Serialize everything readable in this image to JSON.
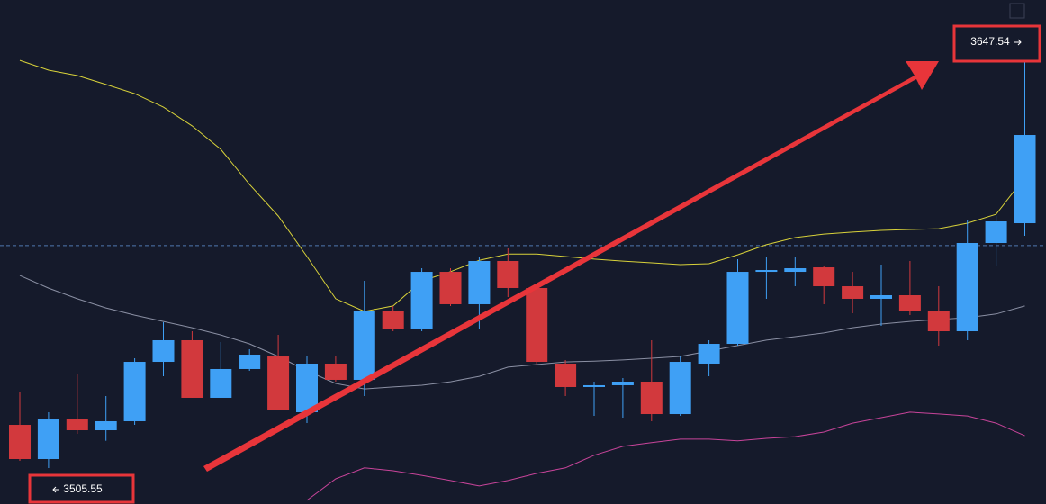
{
  "chart_data": {
    "type": "candlestick",
    "ylim": [
      3493.01,
      3668.54
    ],
    "up_color": "#3fa0f5",
    "down_color": "#d2393d",
    "candles": [
      {
        "open": 3520.59,
        "high": 3532.19,
        "low": 3508.05,
        "close": 3508.68
      },
      {
        "open": 3508.68,
        "high": 3524.98,
        "low": 3505.55,
        "close": 3522.47
      },
      {
        "open": 3522.47,
        "high": 3538.46,
        "low": 3517.46,
        "close": 3518.71
      },
      {
        "open": 3518.71,
        "high": 3530.62,
        "low": 3515.05,
        "close": 3521.85
      },
      {
        "open": 3521.85,
        "high": 3543.79,
        "low": 3520.59,
        "close": 3542.53
      },
      {
        "open": 3542.53,
        "high": 3556.33,
        "low": 3537.52,
        "close": 3550.06
      },
      {
        "open": 3550.06,
        "high": 3553.19,
        "low": 3530.0,
        "close": 3530.0
      },
      {
        "open": 3530.0,
        "high": 3549.43,
        "low": 3530.0,
        "close": 3540.03
      },
      {
        "open": 3540.03,
        "high": 3546.92,
        "low": 3539.4,
        "close": 3545.04
      },
      {
        "open": 3544.41,
        "high": 3551.93,
        "low": 3525.61,
        "close": 3525.61
      },
      {
        "open": 3524.98,
        "high": 3544.41,
        "low": 3521.22,
        "close": 3541.91
      },
      {
        "open": 3541.91,
        "high": 3544.41,
        "low": 3535.64,
        "close": 3536.27
      },
      {
        "open": 3536.27,
        "high": 3570.74,
        "low": 3530.62,
        "close": 3560.09
      },
      {
        "open": 3560.09,
        "high": 3561.97,
        "low": 3553.19,
        "close": 3553.82
      },
      {
        "open": 3553.82,
        "high": 3575.13,
        "low": 3553.19,
        "close": 3573.87
      },
      {
        "open": 3573.87,
        "high": 3575.13,
        "low": 3561.97,
        "close": 3562.6
      },
      {
        "open": 3562.6,
        "high": 3578.89,
        "low": 3553.82,
        "close": 3577.64
      },
      {
        "open": 3577.64,
        "high": 3582.03,
        "low": 3565.1,
        "close": 3568.24
      },
      {
        "open": 3568.24,
        "high": 3569.49,
        "low": 3541.28,
        "close": 3542.53
      },
      {
        "open": 3541.91,
        "high": 3543.16,
        "low": 3530.62,
        "close": 3533.76
      },
      {
        "open": 3533.76,
        "high": 3535.64,
        "low": 3523.73,
        "close": 3534.39
      },
      {
        "open": 3534.39,
        "high": 3536.89,
        "low": 3523.1,
        "close": 3535.64
      },
      {
        "open": 3535.64,
        "high": 3550.06,
        "low": 3521.85,
        "close": 3524.35
      },
      {
        "open": 3524.35,
        "high": 3544.41,
        "low": 3523.73,
        "close": 3542.53
      },
      {
        "open": 3541.91,
        "high": 3550.06,
        "low": 3537.52,
        "close": 3548.8
      },
      {
        "open": 3548.8,
        "high": 3578.26,
        "low": 3548.17,
        "close": 3573.87
      },
      {
        "open": 3573.87,
        "high": 3578.89,
        "low": 3564.48,
        "close": 3574.5
      },
      {
        "open": 3573.87,
        "high": 3578.89,
        "low": 3568.86,
        "close": 3575.13
      },
      {
        "open": 3575.44,
        "high": 3575.75,
        "low": 3562.6,
        "close": 3568.86
      },
      {
        "open": 3568.86,
        "high": 3573.87,
        "low": 3559.46,
        "close": 3564.48
      },
      {
        "open": 3564.48,
        "high": 3576.38,
        "low": 3555.07,
        "close": 3565.73
      },
      {
        "open": 3565.73,
        "high": 3577.64,
        "low": 3558.83,
        "close": 3560.09
      },
      {
        "open": 3560.09,
        "high": 3568.86,
        "low": 3548.17,
        "close": 3553.19
      },
      {
        "open": 3553.19,
        "high": 3592.06,
        "low": 3550.06,
        "close": 3583.91
      },
      {
        "open": 3583.91,
        "high": 3593.31,
        "low": 3575.75,
        "close": 3591.43
      },
      {
        "open": 3590.8,
        "high": 3647.54,
        "low": 3586.42,
        "close": 3621.52
      }
    ],
    "series": [
      {
        "color": "#d8d23a",
        "values": [
          3647.5,
          3644.1,
          3642.2,
          3639.1,
          3635.9,
          3631.2,
          3624.7,
          3616.5,
          3604.3,
          3593.3,
          3579.2,
          3564.5,
          3560.1,
          3562.0,
          3570.7,
          3573.9,
          3577.9,
          3580.1,
          3580.1,
          3579.2,
          3578.3,
          3577.6,
          3577.0,
          3576.4,
          3576.7,
          3579.8,
          3583.3,
          3585.8,
          3587.0,
          3587.7,
          3588.3,
          3588.6,
          3588.9,
          3590.8,
          3593.9,
          3606.8
        ]
      },
      {
        "color": "#8a8fa3",
        "values": [
          3572.6,
          3568.2,
          3564.5,
          3561.3,
          3558.8,
          3556.6,
          3554.4,
          3551.9,
          3548.8,
          3544.4,
          3539.4,
          3535.0,
          3533.1,
          3533.8,
          3534.4,
          3535.6,
          3537.5,
          3540.7,
          3541.6,
          3542.5,
          3542.8,
          3543.2,
          3543.8,
          3544.4,
          3546.3,
          3548.2,
          3550.1,
          3551.3,
          3552.6,
          3554.4,
          3555.7,
          3556.6,
          3557.3,
          3557.9,
          3559.2,
          3562.0
        ]
      },
      {
        "color": "#c8449a",
        "values": [
          null,
          null,
          null,
          null,
          null,
          null,
          null,
          null,
          null,
          null,
          3494.3,
          3501.8,
          3505.6,
          3504.6,
          3503.0,
          3501.2,
          3499.3,
          3501.2,
          3503.7,
          3505.6,
          3510.0,
          3513.1,
          3514.4,
          3515.6,
          3515.6,
          3515.0,
          3515.9,
          3516.5,
          3518.1,
          3521.2,
          3523.1,
          3525.0,
          3524.4,
          3523.7,
          3521.2,
          3516.8
        ]
      }
    ],
    "price_line": 3583.0,
    "max_label": 3647.54,
    "min_label": 3505.55
  }
}
